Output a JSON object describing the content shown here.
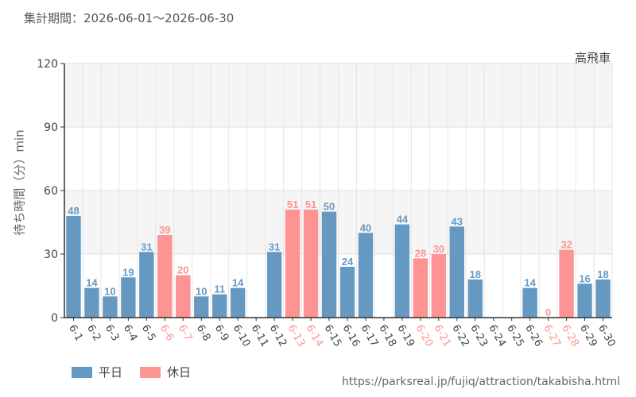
{
  "header": {
    "period": "集計期間：2026-06-01～2026-06-30"
  },
  "attraction_name": "高飛車",
  "legend": {
    "weekday_label": "平日",
    "holiday_label": "休日"
  },
  "source_url": "https://parksreal.jp/fujiq/attraction/takabisha.html",
  "colors": {
    "weekday": "#6699c2",
    "holiday": "#fe9393",
    "band": "#f5f5f5",
    "axis": "#333333"
  },
  "chart_data": {
    "type": "bar",
    "title": "",
    "xlabel": "",
    "ylabel": "待ち時間（分）min",
    "ylim": [
      0,
      120
    ],
    "yticks": [
      0,
      30,
      60,
      90,
      120
    ],
    "categories": [
      "6-1",
      "6-2",
      "6-3",
      "6-4",
      "6-5",
      "6-6",
      "6-7",
      "6-8",
      "6-9",
      "6-10",
      "6-11",
      "6-12",
      "6-13",
      "6-14",
      "6-15",
      "6-16",
      "6-17",
      "6-18",
      "6-19",
      "6-20",
      "6-21",
      "6-22",
      "6-23",
      "6-24",
      "6-25",
      "6-26",
      "6-27",
      "6-28",
      "6-29",
      "6-30"
    ],
    "values": [
      48,
      14,
      10,
      19,
      31,
      39,
      20,
      10,
      11,
      14,
      null,
      31,
      51,
      51,
      50,
      24,
      40,
      null,
      44,
      28,
      30,
      43,
      18,
      null,
      null,
      14,
      0,
      32,
      16,
      18
    ],
    "holiday": [
      false,
      false,
      false,
      false,
      false,
      true,
      true,
      false,
      false,
      false,
      false,
      false,
      true,
      true,
      false,
      false,
      false,
      false,
      false,
      true,
      true,
      false,
      false,
      false,
      false,
      false,
      true,
      true,
      false,
      false
    ],
    "series": [
      {
        "name": "平日"
      },
      {
        "name": "休日"
      }
    ]
  }
}
